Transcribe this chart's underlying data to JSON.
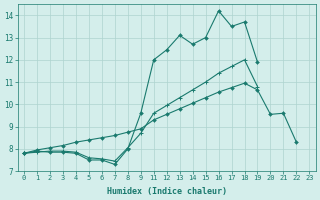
{
  "xlabel": "Humidex (Indice chaleur)",
  "line1_x": [
    0,
    1,
    2,
    3,
    4,
    5,
    6,
    7,
    8,
    9,
    11,
    12,
    13,
    14,
    15,
    16,
    17,
    18,
    19
  ],
  "line1_y": [
    7.8,
    7.9,
    7.85,
    7.85,
    7.8,
    7.5,
    7.5,
    7.3,
    8.0,
    9.6,
    12.0,
    12.45,
    13.1,
    12.7,
    13.0,
    14.2,
    13.5,
    13.7,
    11.9
  ],
  "line2_x": [
    0,
    1,
    2,
    3,
    4,
    5,
    6,
    7,
    8,
    9,
    11,
    12,
    13,
    14,
    15,
    16,
    17,
    18,
    19
  ],
  "line2_y": [
    7.8,
    7.85,
    7.9,
    7.9,
    7.85,
    7.6,
    7.55,
    7.45,
    8.05,
    8.7,
    9.6,
    9.95,
    10.3,
    10.65,
    11.0,
    11.4,
    11.7,
    12.0,
    10.8
  ],
  "line3_x": [
    0,
    1,
    2,
    3,
    4,
    5,
    6,
    7,
    8,
    9,
    11,
    12,
    13,
    14,
    15,
    16,
    17,
    18,
    19,
    20,
    21,
    22
  ],
  "line3_y": [
    7.8,
    7.95,
    8.05,
    8.15,
    8.3,
    8.4,
    8.5,
    8.6,
    8.75,
    8.9,
    9.3,
    9.55,
    9.8,
    10.05,
    10.3,
    10.55,
    10.75,
    10.95,
    10.65,
    9.55,
    9.6,
    8.3
  ],
  "color": "#1a7a6e",
  "bg_color": "#d4eeeb",
  "grid_color": "#aed4cf",
  "ylim": [
    7.0,
    14.5
  ],
  "yticks": [
    7,
    8,
    9,
    10,
    11,
    12,
    13,
    14
  ],
  "xticks": [
    0,
    1,
    2,
    3,
    4,
    5,
    6,
    7,
    8,
    9,
    11,
    12,
    13,
    14,
    15,
    16,
    17,
    18,
    19,
    20,
    21,
    22,
    23
  ]
}
